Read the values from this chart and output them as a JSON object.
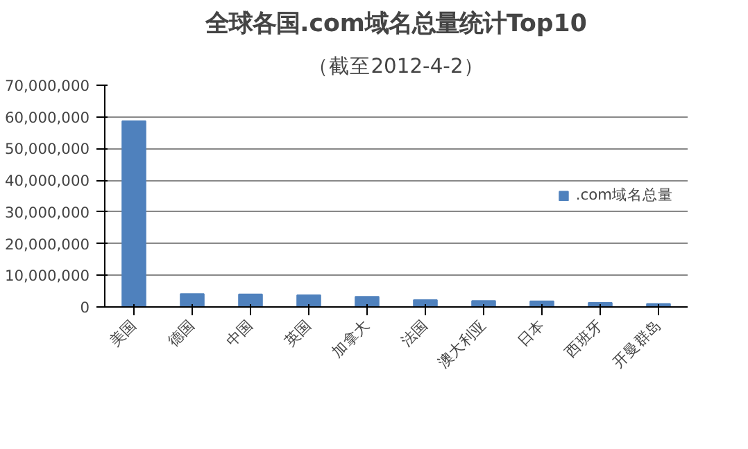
{
  "chart_data": {
    "type": "bar",
    "title": "全球各国.com域名总量统计Top10",
    "subtitle": "（截至2012-4-2）",
    "categories": [
      "美国",
      "德国",
      "中国",
      "英国",
      "加拿大",
      "法国",
      "澳大利亚",
      "日本",
      "西班牙",
      "开曼群岛"
    ],
    "series": [
      {
        "name": ".com域名总量",
        "color": "#4f81bd",
        "values": [
          58700000,
          4100000,
          4000000,
          3700000,
          3200000,
          2200000,
          1900000,
          1800000,
          1300000,
          1000000
        ]
      }
    ],
    "ylim": [
      0,
      70000000
    ],
    "yticks": [
      {
        "value": 0,
        "label": "0"
      },
      {
        "value": 10000000,
        "label": "10,000,000"
      },
      {
        "value": 20000000,
        "label": "20,000,000"
      },
      {
        "value": 30000000,
        "label": "30,000,000"
      },
      {
        "value": 40000000,
        "label": "40,000,000"
      },
      {
        "value": 50000000,
        "label": "50,000,000"
      },
      {
        "value": 60000000,
        "label": "60,000,000"
      },
      {
        "value": 70000000,
        "label": "70,000,000"
      }
    ],
    "grid": "y",
    "legend": "right"
  }
}
